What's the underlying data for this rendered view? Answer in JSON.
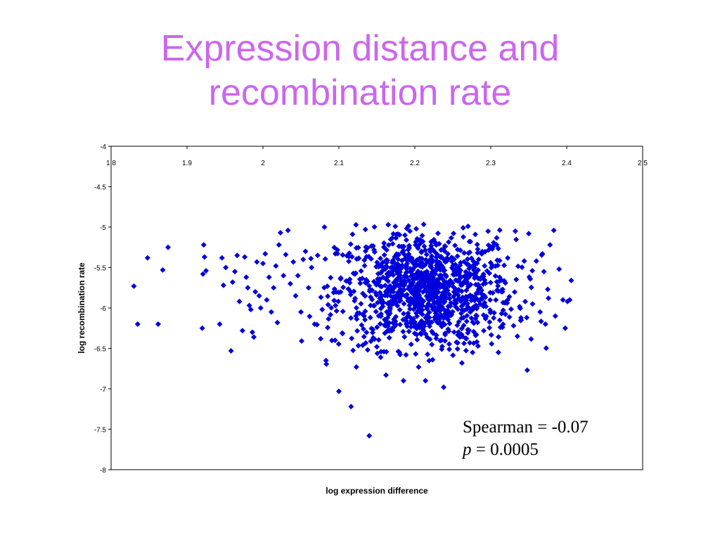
{
  "slide": {
    "title_line1": "Expression distance and",
    "title_line2": "recombination rate",
    "title_color": "#cc66ee"
  },
  "stats": {
    "spearman": "Spearman = -0.07",
    "p_symbol": "p",
    "p_value": " = 0.0005"
  },
  "chart_data": {
    "type": "scatter",
    "xlabel": "log expression difference",
    "ylabel": "log recombination rate",
    "xlim": [
      1.8,
      2.5
    ],
    "ylim": [
      -8,
      -4
    ],
    "x_ticks": [
      "1.8",
      "1.9",
      "2",
      "2.1",
      "2.2",
      "2.3",
      "2.4",
      "2.5"
    ],
    "y_ticks": [
      "-4",
      "-4.5",
      "-5",
      "-5.5",
      "-6",
      "-6.5",
      "-7",
      "-7.5",
      "-8"
    ],
    "x_axis_position": "top",
    "grid": false,
    "marker": "diamond",
    "marker_color": "#0000dd",
    "series": [
      {
        "points": [
          [
            1.83,
            -5.73
          ],
          [
            1.835,
            -6.2
          ],
          [
            1.848,
            -5.38
          ],
          [
            1.862,
            -6.2
          ],
          [
            1.868,
            -5.53
          ],
          [
            1.875,
            -5.25
          ],
          [
            1.92,
            -6.25
          ],
          [
            1.922,
            -5.22
          ],
          [
            1.921,
            -5.58
          ],
          [
            1.923,
            -5.37
          ],
          [
            1.925,
            -5.54
          ],
          [
            1.943,
            -6.2
          ],
          [
            1.946,
            -5.38
          ],
          [
            1.948,
            -5.72
          ],
          [
            1.951,
            -5.5
          ],
          [
            1.958,
            -6.53
          ],
          [
            1.96,
            -5.68
          ],
          [
            1.963,
            -5.55
          ],
          [
            1.966,
            -5.35
          ],
          [
            1.969,
            -5.92
          ],
          [
            1.973,
            -6.28
          ],
          [
            1.976,
            -5.37
          ],
          [
            1.978,
            -5.62
          ],
          [
            1.98,
            -5.75
          ],
          [
            1.982,
            -5.97
          ],
          [
            1.984,
            -6.02
          ],
          [
            1.986,
            -6.3
          ],
          [
            1.988,
            -6.36
          ],
          [
            1.99,
            -5.8
          ],
          [
            1.992,
            -5.43
          ],
          [
            1.995,
            -5.85
          ],
          [
            1.997,
            -6.0
          ],
          [
            2.0,
            -5.45
          ],
          [
            2.003,
            -5.33
          ],
          [
            2.005,
            -5.9
          ],
          [
            2.008,
            -5.62
          ],
          [
            2.011,
            -6.05
          ],
          [
            2.014,
            -5.75
          ],
          [
            2.017,
            -5.48
          ],
          [
            2.019,
            -6.18
          ],
          [
            2.021,
            -5.22
          ],
          [
            2.023,
            -5.07
          ],
          [
            2.027,
            -5.6
          ],
          [
            2.03,
            -5.34
          ],
          [
            2.033,
            -5.04
          ],
          [
            2.036,
            -5.7
          ],
          [
            2.04,
            -5.43
          ],
          [
            2.043,
            -5.85
          ],
          [
            2.046,
            -5.6
          ],
          [
            2.05,
            -6.05
          ],
          [
            2.053,
            -5.4
          ],
          [
            2.056,
            -5.3
          ],
          [
            2.06,
            -5.75
          ],
          [
            2.064,
            -5.5
          ],
          [
            2.068,
            -6.2
          ],
          [
            2.072,
            -5.35
          ],
          [
            2.076,
            -6.38
          ],
          [
            2.078,
            -6.02
          ],
          [
            2.081,
            -5.0
          ],
          [
            2.083,
            -6.65
          ],
          [
            2.095,
            -6.4
          ],
          [
            2.1,
            -7.03
          ],
          [
            2.116,
            -7.22
          ],
          [
            2.123,
            -6.73
          ],
          [
            2.14,
            -7.58
          ],
          [
            2.15,
            -6.48
          ],
          [
            2.162,
            -6.83
          ],
          [
            2.185,
            -6.9
          ],
          [
            2.205,
            -6.73
          ],
          [
            2.214,
            -6.9
          ],
          [
            2.238,
            -6.98
          ],
          [
            2.262,
            -6.68
          ],
          [
            2.276,
            -6.55
          ],
          [
            2.31,
            -6.55
          ],
          [
            2.33,
            -6.22
          ],
          [
            2.335,
            -6.35
          ],
          [
            2.34,
            -6.15
          ],
          [
            2.348,
            -6.77
          ],
          [
            2.35,
            -5.08
          ],
          [
            2.355,
            -5.95
          ],
          [
            2.36,
            -5.42
          ],
          [
            2.365,
            -6.05
          ],
          [
            2.37,
            -5.55
          ],
          [
            2.375,
            -5.77
          ],
          [
            2.383,
            -5.04
          ],
          [
            2.39,
            -5.52
          ],
          [
            2.395,
            -5.9
          ],
          [
            2.398,
            -6.25
          ],
          [
            2.401,
            -5.92
          ],
          [
            2.404,
            -5.9
          ],
          [
            2.406,
            -5.66
          ],
          [
            2.385,
            -6.1
          ],
          [
            2.378,
            -5.22
          ],
          [
            2.372,
            -6.2
          ],
          [
            2.368,
            -5.33
          ]
        ],
        "cloud": {
          "count": 1150,
          "x_mean": 2.215,
          "x_sd": 0.058,
          "y_mean": -5.78,
          "y_sd": 0.36,
          "x_min": 2.05,
          "x_max": 2.38,
          "y_min": -6.7,
          "y_max": -4.96
        }
      }
    ]
  }
}
